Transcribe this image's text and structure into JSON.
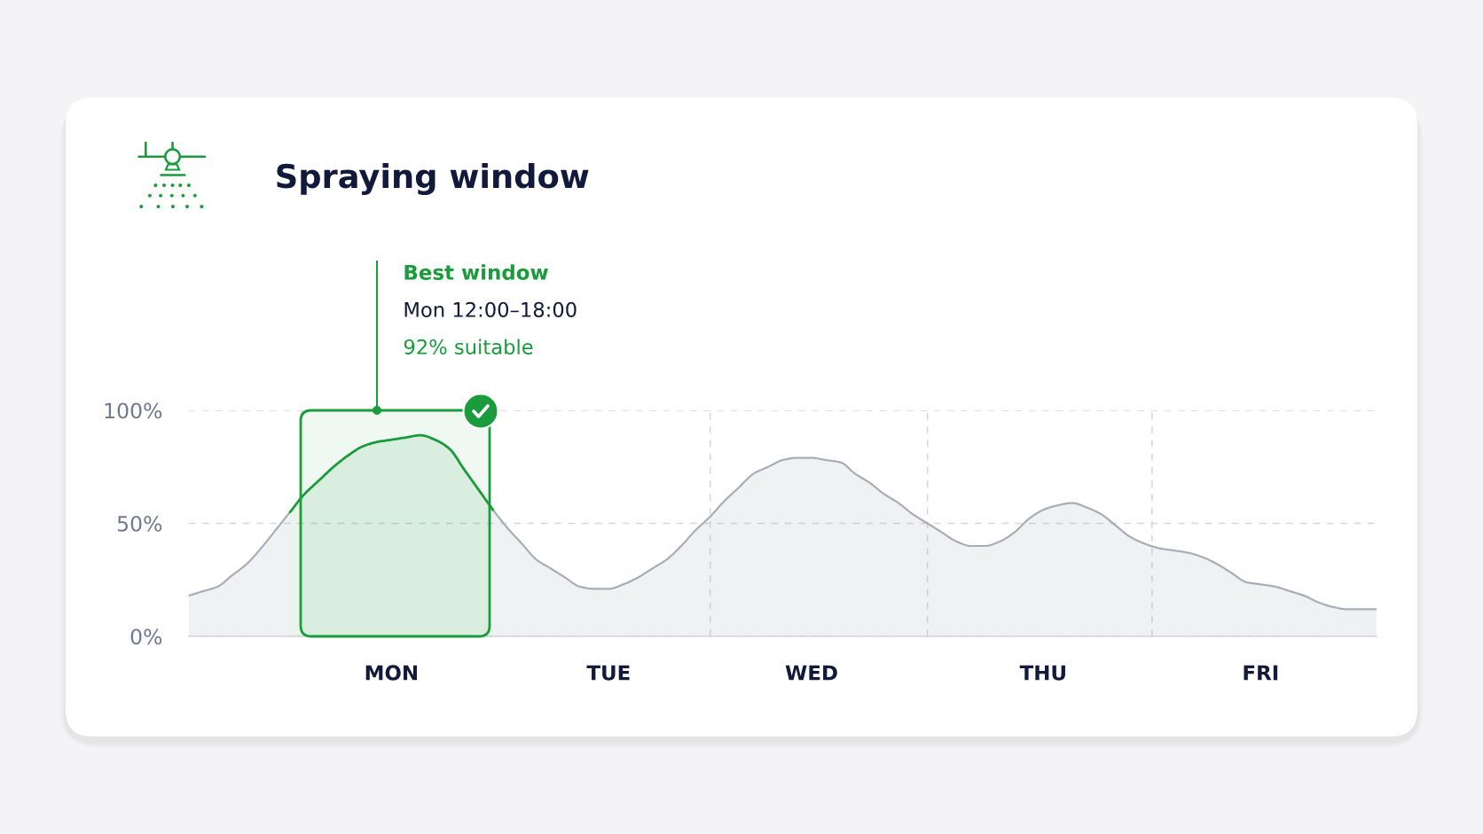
{
  "chart_data": {
    "type": "area",
    "title": "Spraying window",
    "categories": [
      null,
      null,
      null,
      null,
      null,
      null,
      null,
      null,
      null,
      null,
      null,
      null,
      null,
      null,
      "MON",
      null,
      null,
      null,
      null,
      null,
      null,
      null,
      null,
      null,
      null,
      null,
      null,
      null,
      null,
      "TUE",
      null,
      null,
      null,
      null,
      null,
      null,
      null,
      null,
      null,
      null,
      null,
      null,
      null,
      "WED",
      null,
      null,
      null,
      null,
      null,
      null,
      null,
      null,
      null,
      null,
      null,
      null,
      null,
      null,
      null,
      "THU",
      null,
      null,
      null,
      null,
      null,
      null,
      null,
      null,
      null,
      null,
      null,
      null,
      null,
      null,
      "FRI",
      null,
      null,
      null,
      null,
      null,
      null,
      null,
      null
    ],
    "series": [
      {
        "color": "#a9adb8",
        "values": [
          18,
          20,
          22,
          27,
          32,
          39,
          47,
          55,
          null,
          null,
          null,
          null,
          null,
          null,
          null,
          null,
          null,
          null,
          null,
          null,
          null,
          56,
          48,
          41,
          34,
          30,
          26,
          22,
          21,
          21,
          23,
          26,
          30,
          34,
          40,
          47,
          53,
          60,
          66,
          72,
          75,
          78,
          79,
          79,
          78,
          77,
          72,
          68,
          63,
          59,
          54,
          50,
          46,
          42,
          40,
          40,
          42,
          46,
          52,
          56,
          58,
          59,
          57,
          54,
          49,
          44,
          41,
          39,
          38,
          37,
          35,
          32,
          28,
          24,
          23,
          22,
          20,
          18,
          15,
          13,
          12,
          12,
          12
        ]
      },
      {
        "color": "#1a9b3c",
        "values": [
          null,
          null,
          null,
          null,
          null,
          null,
          null,
          55,
          63,
          69,
          75,
          80,
          84,
          86,
          87,
          88,
          89,
          87,
          83,
          74,
          65,
          56,
          null,
          null,
          null,
          null,
          null,
          null,
          null,
          null,
          null,
          null,
          null,
          null,
          null,
          null,
          null,
          null,
          null,
          null,
          null,
          null,
          null,
          null,
          null,
          null,
          null,
          null,
          null,
          null,
          null,
          null,
          null,
          null,
          null,
          null,
          null,
          null,
          null,
          null,
          null,
          null,
          null,
          null,
          null,
          null,
          null,
          null,
          null,
          null,
          null,
          null,
          null,
          null,
          null,
          null,
          null,
          null,
          null,
          null,
          null,
          null,
          null
        ]
      }
    ],
    "ylim": [
      0,
      100
    ],
    "yticks": [
      {
        "value": 0,
        "label": "0%"
      },
      {
        "value": 50,
        "label": "50%"
      },
      {
        "value": 100,
        "label": "100%"
      }
    ],
    "grid": "y",
    "annotations": [
      "Best window",
      "Mon 12:00–18:00",
      "92% suitable"
    ]
  }
}
